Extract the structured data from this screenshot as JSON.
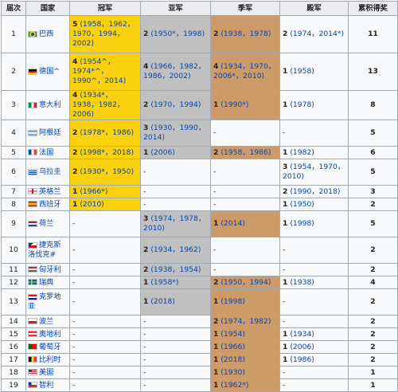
{
  "headers": {
    "rank": "届次",
    "country": "国家",
    "champion": "冠军",
    "runner_up": "亚军",
    "third": "季军",
    "fourth": "殿军",
    "total": "累积得奖"
  },
  "colors": {
    "gold": "#f9d10f",
    "silver": "#c0c0c0",
    "bronze": "#cd9a6a",
    "header": "#eaecf0",
    "cell": "#f8f9fa",
    "link": "#0645ad"
  },
  "rows": [
    {
      "rank": "1",
      "country": "巴西",
      "flag": "brazil-flag-icon",
      "champion": {
        "count": "5",
        "years": "(1958，1962，1970，1994，2002)"
      },
      "runner_up": {
        "count": "2",
        "years": "(1950*，1998)"
      },
      "third": {
        "count": "2",
        "years": "(1938，1978)"
      },
      "fourth": {
        "count": "2",
        "years": "(1974，2014*)"
      },
      "total": "11"
    },
    {
      "rank": "2",
      "country": "德国^",
      "flag": "germany-flag-icon",
      "champion": {
        "count": "4",
        "years": "(1954^，1974*^，1990^，2014)"
      },
      "runner_up": {
        "count": "4",
        "years": "(1966，1982，1986，2002)"
      },
      "third": {
        "count": "4",
        "years": "(1934，1970，2006*，2010)"
      },
      "fourth": {
        "count": "1",
        "years": "(1958)"
      },
      "total": "13"
    },
    {
      "rank": "3",
      "country": "意大利",
      "flag": "italy-flag-icon",
      "champion": {
        "count": "4",
        "years": "(1934*，1938，1982，2006)"
      },
      "runner_up": {
        "count": "2",
        "years": "(1970，1994)"
      },
      "third": {
        "count": "1",
        "years": "(1990*)"
      },
      "fourth": {
        "count": "1",
        "years": "(1978)"
      },
      "total": "8"
    },
    {
      "rank": "4",
      "country": "阿根廷",
      "flag": "argentina-flag-icon",
      "champion": {
        "count": "2",
        "years": "(1978*，1986)"
      },
      "runner_up": {
        "count": "3",
        "years": "(1930，1990，2014)"
      },
      "third": {
        "count": "",
        "years": "-"
      },
      "fourth": {
        "count": "",
        "years": "-"
      },
      "total": "5"
    },
    {
      "rank": "5",
      "country": "法国",
      "flag": "france-flag-icon",
      "champion": {
        "count": "2",
        "years": "(1998*，2018)"
      },
      "runner_up": {
        "count": "1",
        "years": "(2006)"
      },
      "third": {
        "count": "2",
        "years": "(1958，1986)"
      },
      "fourth": {
        "count": "1",
        "years": "(1982)"
      },
      "total": "6"
    },
    {
      "rank": "6",
      "country": "乌拉圭",
      "flag": "uruguay-flag-icon",
      "champion": {
        "count": "2",
        "years": "(1930*，1950)"
      },
      "runner_up": {
        "count": "",
        "years": "-"
      },
      "third": {
        "count": "",
        "years": "-"
      },
      "fourth": {
        "count": "3",
        "years": "(1954，1970，2010)"
      },
      "total": "5"
    },
    {
      "rank": "7",
      "country": "英格兰",
      "flag": "england-flag-icon",
      "champion": {
        "count": "1",
        "years": "(1966*)"
      },
      "runner_up": {
        "count": "",
        "years": "-"
      },
      "third": {
        "count": "",
        "years": "-"
      },
      "fourth": {
        "count": "2",
        "years": "(1990，2018)"
      },
      "total": "3"
    },
    {
      "rank": "8",
      "country": "西班牙",
      "flag": "spain-flag-icon",
      "champion": {
        "count": "1",
        "years": "(2010)"
      },
      "runner_up": {
        "count": "",
        "years": "-"
      },
      "third": {
        "count": "",
        "years": "-"
      },
      "fourth": {
        "count": "1",
        "years": "(1950)"
      },
      "total": "2"
    },
    {
      "rank": "9",
      "country": "荷兰",
      "flag": "netherlands-flag-icon",
      "champion": {
        "count": "",
        "years": "-"
      },
      "runner_up": {
        "count": "3",
        "years": "(1974，1978，2010)"
      },
      "third": {
        "count": "1",
        "years": "(2014)"
      },
      "fourth": {
        "count": "1",
        "years": "(1998)"
      },
      "total": "5"
    },
    {
      "rank": "10",
      "country": "捷克斯洛伐克#",
      "flag": "czechoslovakia-flag-icon",
      "champion": {
        "count": "",
        "years": "-"
      },
      "runner_up": {
        "count": "2",
        "years": "(1934，1962)"
      },
      "third": {
        "count": "",
        "years": "-"
      },
      "fourth": {
        "count": "",
        "years": "-"
      },
      "total": "2"
    },
    {
      "rank": "11",
      "country": "匈牙利",
      "flag": "hungary-flag-icon",
      "champion": {
        "count": "",
        "years": "-"
      },
      "runner_up": {
        "count": "2",
        "years": "(1938，1954)"
      },
      "third": {
        "count": "",
        "years": "-"
      },
      "fourth": {
        "count": "",
        "years": "-"
      },
      "total": "2"
    },
    {
      "rank": "12",
      "country": "瑞典",
      "flag": "sweden-flag-icon",
      "champion": {
        "count": "",
        "years": "-"
      },
      "runner_up": {
        "count": "1",
        "years": "(1958*)"
      },
      "third": {
        "count": "2",
        "years": "(1950，1994)"
      },
      "fourth": {
        "count": "1",
        "years": "(1938)"
      },
      "total": "4"
    },
    {
      "rank": "13",
      "country": "克罗地亚",
      "flag": "croatia-flag-icon",
      "champion": {
        "count": "",
        "years": "-"
      },
      "runner_up": {
        "count": "1",
        "years": "(2018)"
      },
      "third": {
        "count": "1",
        "years": "(1998)"
      },
      "fourth": {
        "count": "",
        "years": "-"
      },
      "total": "2"
    },
    {
      "rank": "14",
      "country": "波兰",
      "flag": "poland-flag-icon",
      "champion": {
        "count": "",
        "years": "-"
      },
      "runner_up": {
        "count": "",
        "years": "-"
      },
      "third": {
        "count": "2",
        "years": "(1974，1982)"
      },
      "fourth": {
        "count": "",
        "years": "-"
      },
      "total": "2"
    },
    {
      "rank": "15",
      "country": "奥地利",
      "flag": "austria-flag-icon",
      "champion": {
        "count": "",
        "years": "-"
      },
      "runner_up": {
        "count": "",
        "years": "-"
      },
      "third": {
        "count": "1",
        "years": "(1954)"
      },
      "fourth": {
        "count": "1",
        "years": "(1934)"
      },
      "total": "2"
    },
    {
      "rank": "16",
      "country": "葡萄牙",
      "flag": "portugal-flag-icon",
      "champion": {
        "count": "",
        "years": "-"
      },
      "runner_up": {
        "count": "",
        "years": "-"
      },
      "third": {
        "count": "1",
        "years": "(1966)"
      },
      "fourth": {
        "count": "1",
        "years": "(2006)"
      },
      "total": "2"
    },
    {
      "rank": "17",
      "country": "比利时",
      "flag": "belgium-flag-icon",
      "champion": {
        "count": "",
        "years": "-"
      },
      "runner_up": {
        "count": "",
        "years": "-"
      },
      "third": {
        "count": "1",
        "years": "(2018)"
      },
      "fourth": {
        "count": "1",
        "years": "(1986)"
      },
      "total": "2"
    },
    {
      "rank": "18",
      "country": "美国",
      "flag": "usa-flag-icon",
      "champion": {
        "count": "",
        "years": "-"
      },
      "runner_up": {
        "count": "",
        "years": "-"
      },
      "third": {
        "count": "1",
        "years": "(1930)"
      },
      "fourth": {
        "count": "",
        "years": "-"
      },
      "total": "1"
    },
    {
      "rank": "19",
      "country": "智利",
      "flag": "chile-flag-icon",
      "champion": {
        "count": "",
        "years": "-"
      },
      "runner_up": {
        "count": "",
        "years": "-"
      },
      "third": {
        "count": "1",
        "years": "(1962*)"
      },
      "fourth": {
        "count": "",
        "years": "-"
      },
      "total": "1"
    }
  ]
}
